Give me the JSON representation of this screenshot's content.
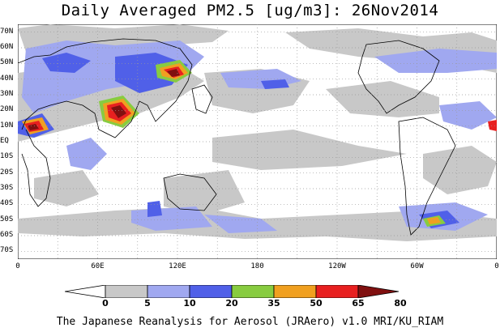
{
  "title": "Daily Averaged PM2.5 [ug/m3]: 26Nov2014",
  "credit": "The Japanese Reanalysis for Aerosol (JRAero) v1.0 MRI/KU_RIAM",
  "map": {
    "projection": "equirectangular",
    "lon_range": [
      0,
      360
    ],
    "lat_range": [
      -75,
      75
    ],
    "grid": "dotted",
    "lat_labels": [
      "70N",
      "60N",
      "50N",
      "40N",
      "30N",
      "20N",
      "10N",
      "EQ",
      "10S",
      "20S",
      "30S",
      "40S",
      "50S",
      "60S",
      "70S"
    ],
    "lon_labels": [
      "0",
      "60E",
      "120E",
      "180",
      "120W",
      "60W",
      "0"
    ]
  },
  "colorbar": {
    "labels": [
      "0",
      "5",
      "10",
      "20",
      "35",
      "50",
      "65",
      "80"
    ],
    "colors": [
      "#ffffff",
      "#c8c8c8",
      "#a0a8f0",
      "#5060e8",
      "#88cc40",
      "#f0a020",
      "#e82020",
      "#801010"
    ]
  }
}
